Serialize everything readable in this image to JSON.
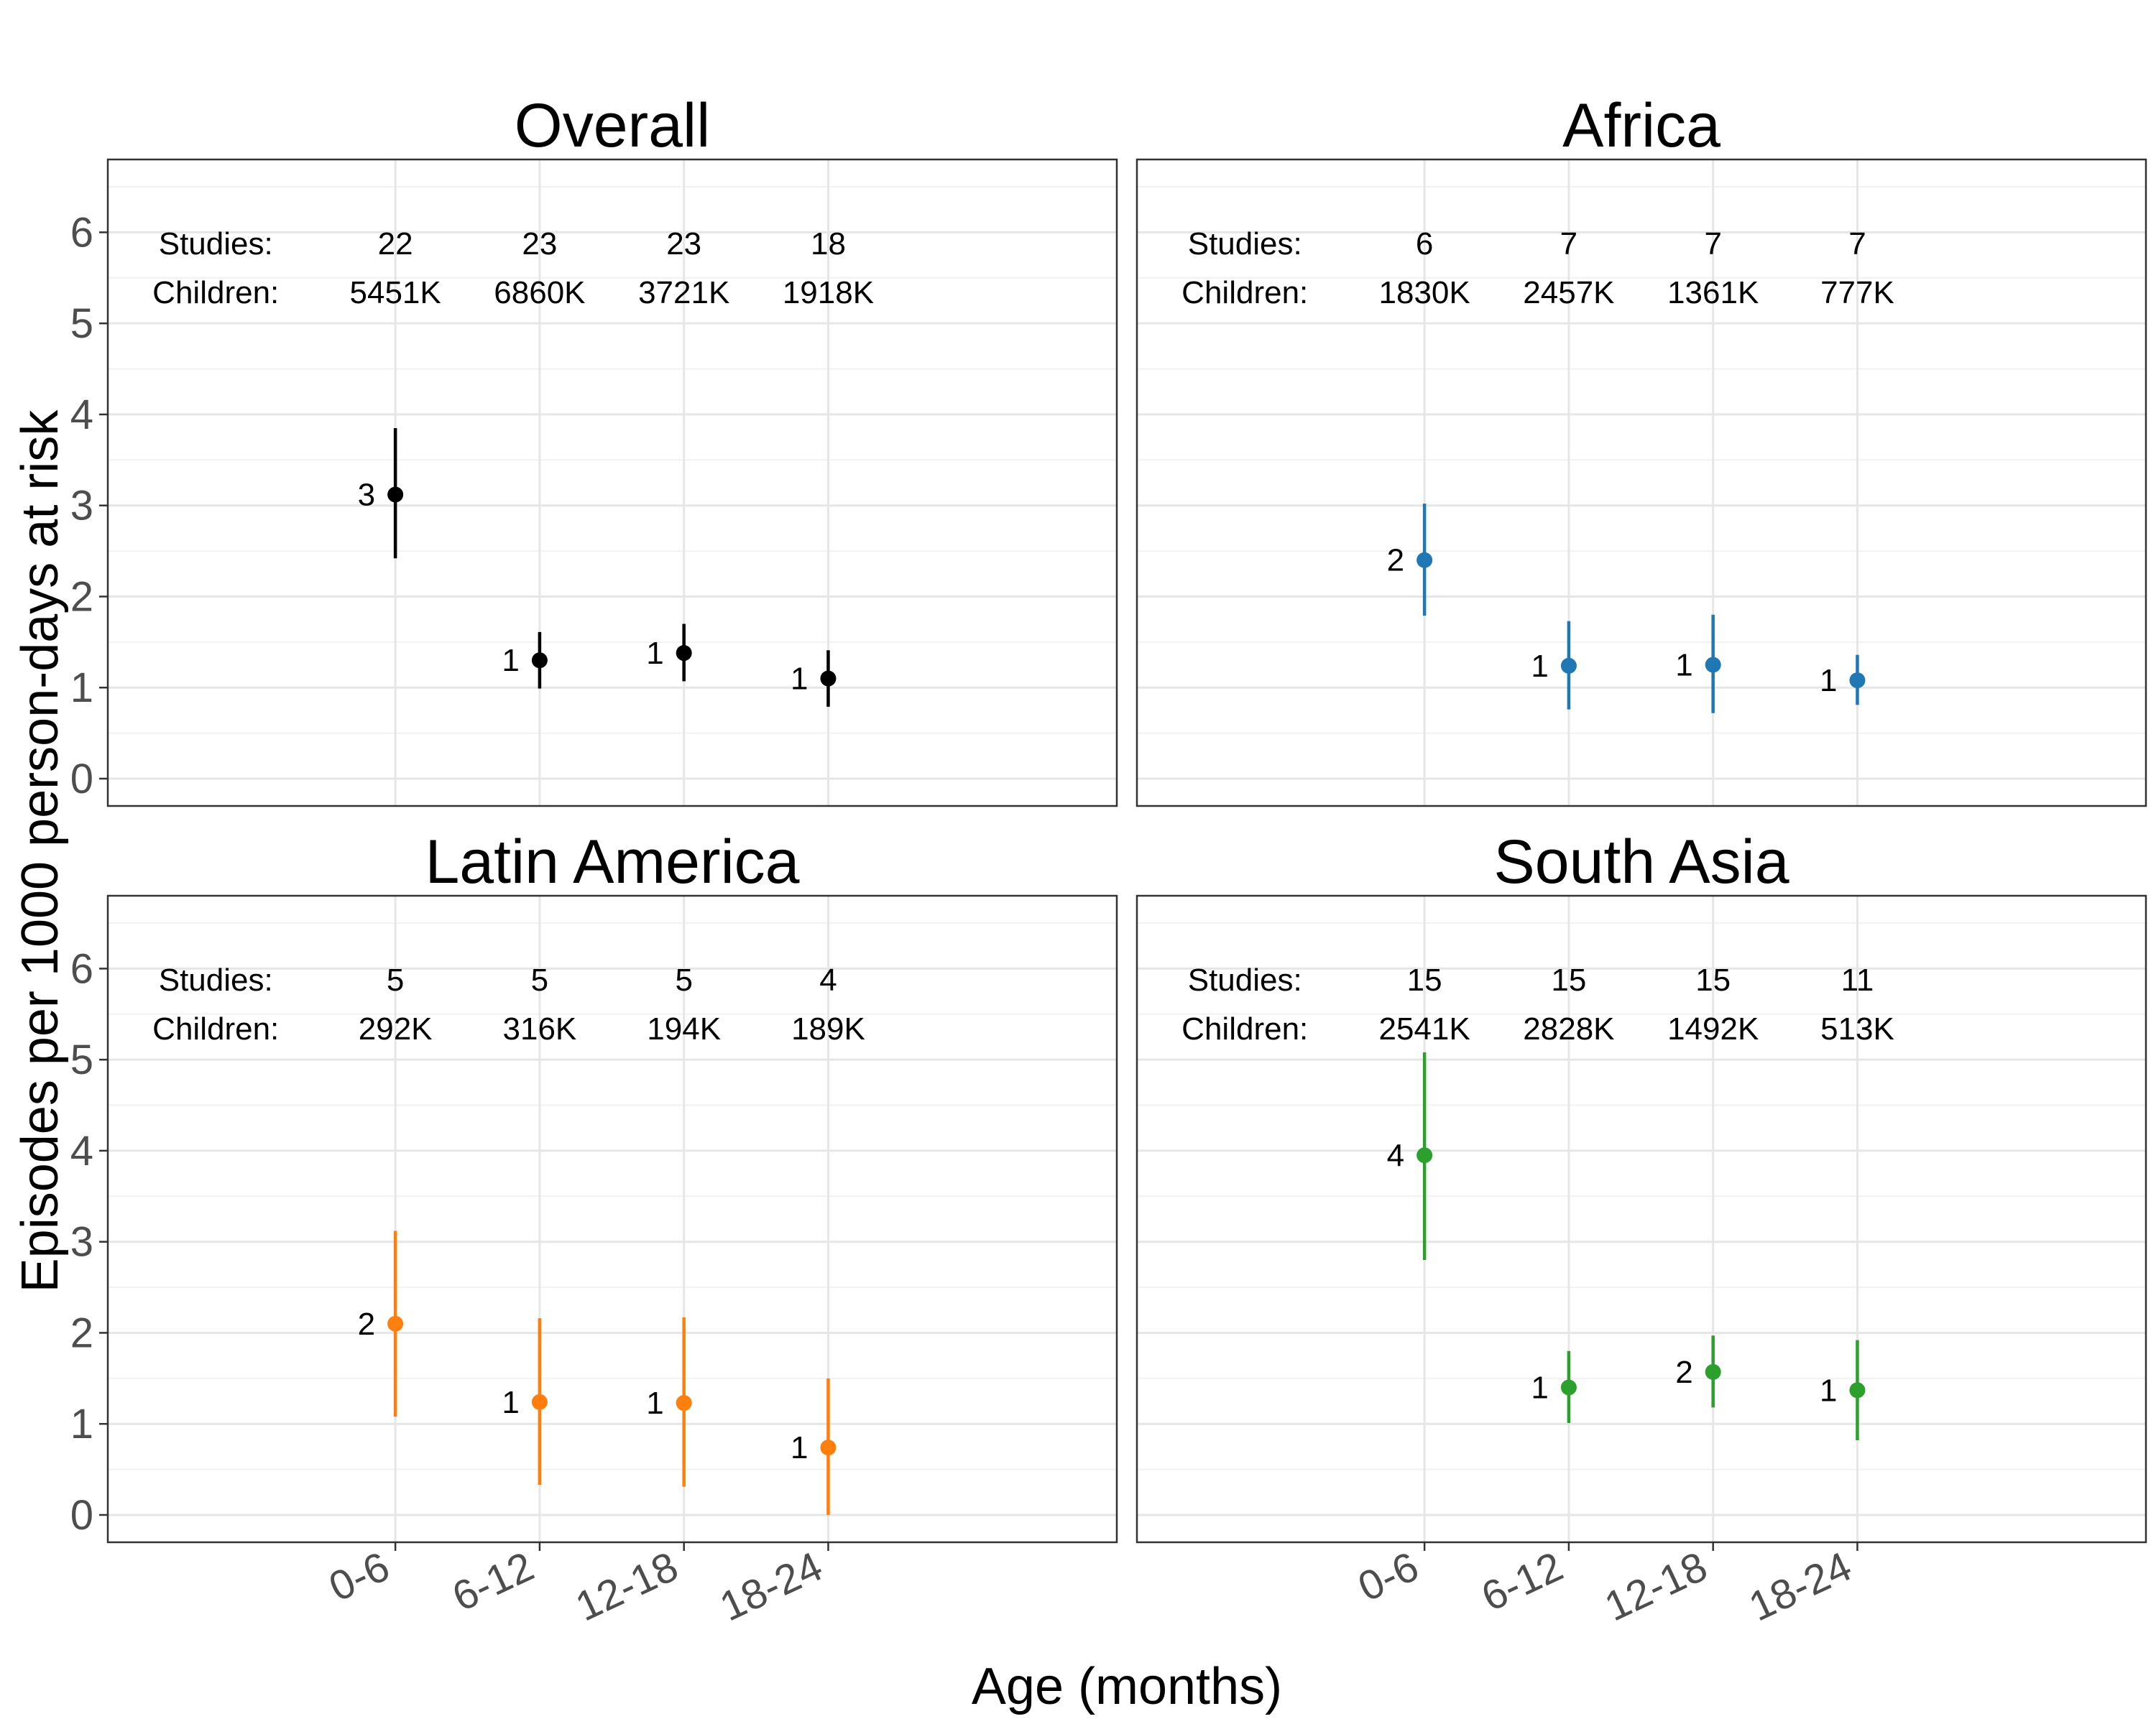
{
  "chart_data": {
    "type": "scatter",
    "subtype": "point-range",
    "xlabel": "Age (months)",
    "ylabel": "Episodes per 1000 person-days at risk",
    "ylim": [
      -0.3,
      6.8
    ],
    "yticks": [
      0,
      1,
      2,
      3,
      4,
      5,
      6
    ],
    "categories": [
      "0-6",
      "6-12",
      "12-18",
      "18-24"
    ],
    "grid": true,
    "row_labels": {
      "studies": "Studies:",
      "children": "Children:"
    },
    "panels": [
      {
        "title": "Overall",
        "color": "#000000",
        "studies": [
          "22",
          "23",
          "23",
          "18"
        ],
        "children": [
          "5451K",
          "6860K",
          "3721K",
          "1918K"
        ],
        "values": [
          3.12,
          1.3,
          1.38,
          1.1
        ],
        "lower": [
          2.42,
          0.99,
          1.07,
          0.79
        ],
        "upper": [
          3.85,
          1.61,
          1.7,
          1.41
        ],
        "labels": [
          "3",
          "1",
          "1",
          "1"
        ]
      },
      {
        "title": "Africa",
        "color": "#1f77b4",
        "studies": [
          "6",
          "7",
          "7",
          "7"
        ],
        "children": [
          "1830K",
          "2457K",
          "1361K",
          "777K"
        ],
        "values": [
          2.4,
          1.24,
          1.25,
          1.08
        ],
        "lower": [
          1.79,
          0.76,
          0.72,
          0.81
        ],
        "upper": [
          3.02,
          1.73,
          1.8,
          1.36
        ],
        "labels": [
          "2",
          "1",
          "1",
          "1"
        ]
      },
      {
        "title": "Latin America",
        "color": "#ff7f0e",
        "studies": [
          "5",
          "5",
          "5",
          "4"
        ],
        "children": [
          "292K",
          "316K",
          "194K",
          "189K"
        ],
        "values": [
          2.1,
          1.24,
          1.23,
          0.74
        ],
        "lower": [
          1.08,
          0.33,
          0.31,
          0.0
        ],
        "upper": [
          3.12,
          2.16,
          2.17,
          1.5
        ],
        "labels": [
          "2",
          "1",
          "1",
          "1"
        ]
      },
      {
        "title": "South Asia",
        "color": "#2ca02c",
        "studies": [
          "15",
          "15",
          "15",
          "11"
        ],
        "children": [
          "2541K",
          "2828K",
          "1492K",
          "513K"
        ],
        "values": [
          3.95,
          1.4,
          1.57,
          1.37
        ],
        "lower": [
          2.8,
          1.01,
          1.18,
          0.82
        ],
        "upper": [
          5.08,
          1.8,
          1.97,
          1.92
        ],
        "labels": [
          "4",
          "1",
          "2",
          "1"
        ]
      }
    ]
  }
}
